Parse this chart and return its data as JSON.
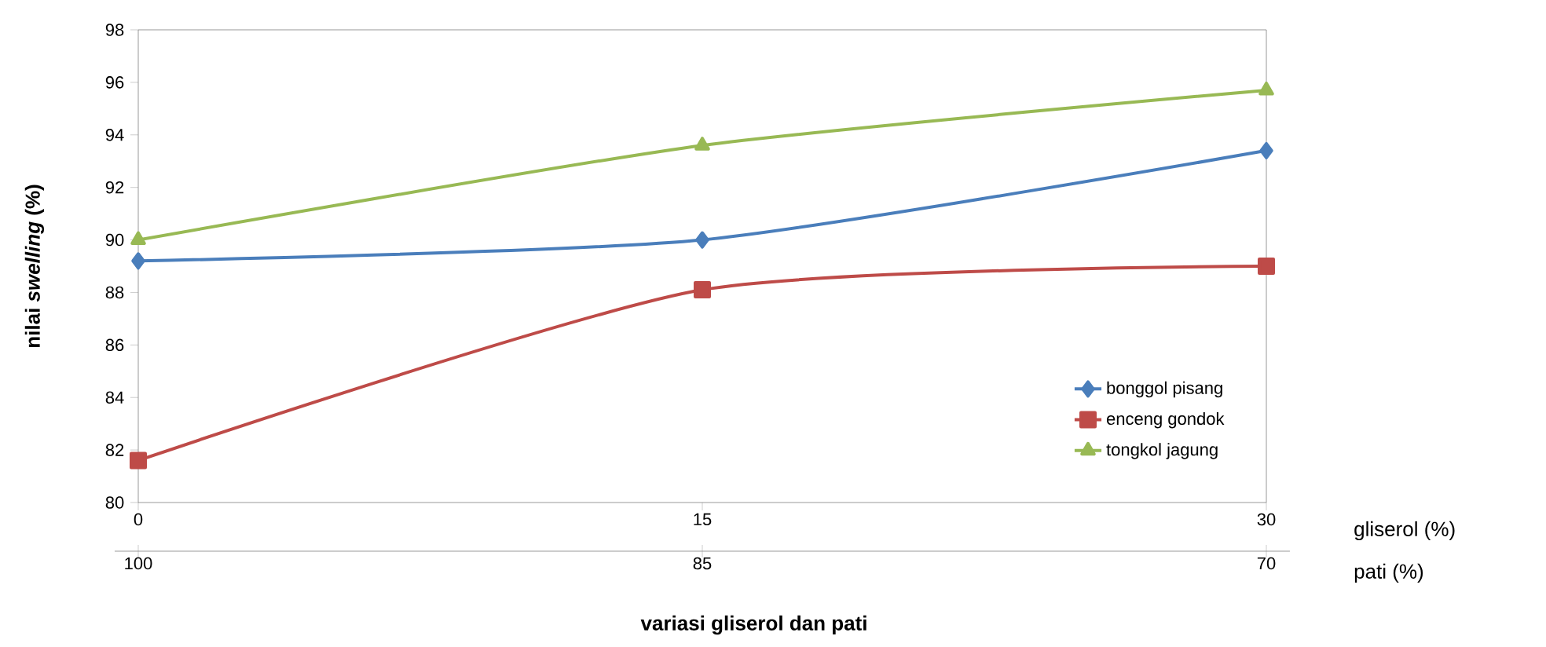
{
  "chart_data": {
    "type": "line",
    "xlabel": "gliserol (%)",
    "x2label": "pati (%)",
    "ylabel": "nilai *swelling* (%)",
    "x": [
      0,
      15,
      30
    ],
    "xlim": [
      0,
      30
    ],
    "xticks": [
      0,
      15,
      30
    ],
    "x2lim": [
      100,
      70
    ],
    "x2ticks": [
      100,
      85,
      70
    ],
    "ylim": [
      80,
      98
    ],
    "yticks": [
      80,
      82,
      84,
      86,
      88,
      90,
      92,
      94,
      96,
      98
    ],
    "legend": "bottom right",
    "series": [
      {
        "name": "bonggol pisang",
        "color": "#4a7ebb",
        "marker": "diamond",
        "values": [
          89.2,
          90.0,
          93.4
        ]
      },
      {
        "name": "enceng gondok",
        "color": "#be4b48",
        "marker": "square",
        "values": [
          81.6,
          88.1,
          89.0
        ]
      },
      {
        "name": "tongkol jagung",
        "color": "#98b954",
        "marker": "triangle",
        "values": [
          90.0,
          93.6,
          95.7
        ]
      }
    ],
    "annotations": [
      "variasi gliserol dan pati"
    ]
  }
}
